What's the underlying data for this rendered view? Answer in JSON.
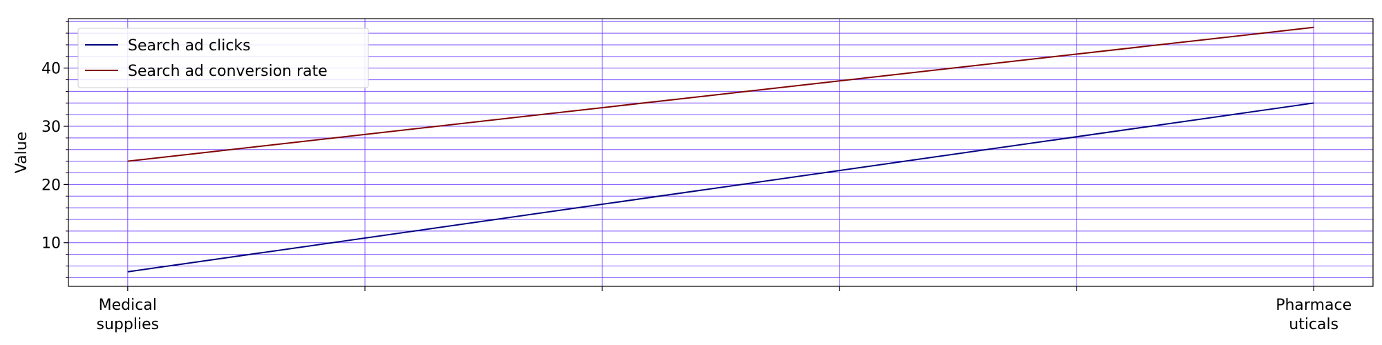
{
  "chart_data": {
    "type": "line",
    "categories": [
      "Medical\nsupplies",
      "",
      "",
      "",
      "",
      "Pharmace\nuticals"
    ],
    "x": [
      0,
      5
    ],
    "series": [
      {
        "name": "Search ad clicks",
        "values": [
          5,
          34
        ],
        "color": "#00007f"
      },
      {
        "name": "Search ad conversion rate",
        "values": [
          24,
          47
        ],
        "color": "#7f0000"
      }
    ],
    "title": "",
    "xlabel": "",
    "ylabel": "Value",
    "xlim": [
      -0.25,
      5.25
    ],
    "ylim": [
      2.5,
      48.5
    ],
    "yticks_major": [
      10,
      20,
      30,
      40
    ],
    "yticks_minor": [
      4,
      6,
      8,
      12,
      14,
      16,
      18,
      22,
      24,
      26,
      28,
      32,
      34,
      36,
      38,
      42,
      44,
      46,
      48
    ],
    "x_gridlines": [
      0,
      1,
      2,
      3,
      4,
      5
    ],
    "grid": true,
    "grid_color": "#6633ff",
    "legend_position": "top-left"
  }
}
